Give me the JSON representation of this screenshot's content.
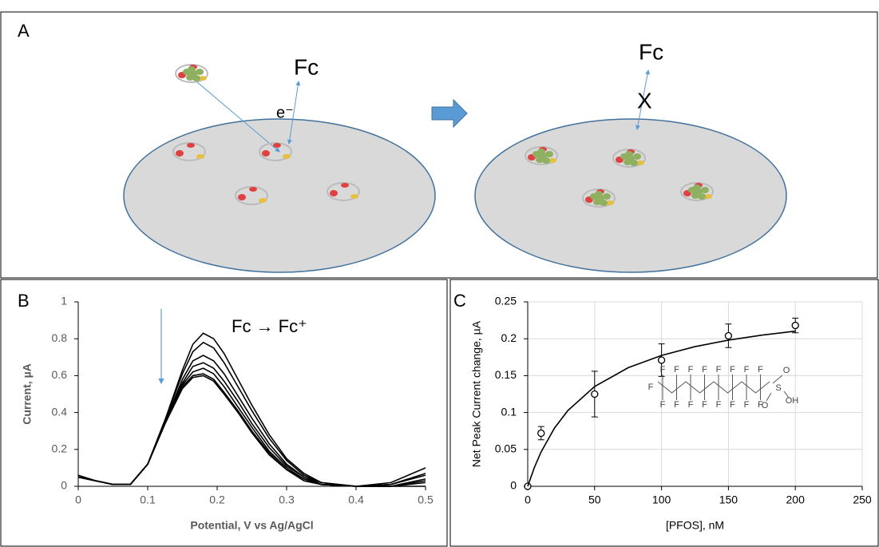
{
  "panel_a": {
    "label": "A",
    "left_fc": "Fc",
    "electron": "e⁻",
    "right_fc": "Fc",
    "blocked": "X"
  },
  "chart_data": [
    {
      "type": "line",
      "label": "B",
      "title": "Fc → Fc⁺",
      "x_label": "Potential, V vs Ag/AgCl",
      "y_label": "Current, µA",
      "xlim": [
        0,
        0.5
      ],
      "xticks": [
        0,
        0.1,
        0.2,
        0.3,
        0.4,
        0.5
      ],
      "ylim": [
        0,
        1
      ],
      "yticks": [
        0,
        0.2,
        0.4,
        0.6,
        0.8,
        1
      ],
      "grid": false,
      "x": [
        0,
        0.025,
        0.05,
        0.075,
        0.1,
        0.125,
        0.15,
        0.165,
        0.18,
        0.195,
        0.21,
        0.23,
        0.25,
        0.275,
        0.3,
        0.325,
        0.35,
        0.4,
        0.45,
        0.5
      ],
      "series": [
        {
          "color": "#000000",
          "values": [
            0.05,
            0.03,
            0.01,
            0.01,
            0.12,
            0.36,
            0.63,
            0.77,
            0.83,
            0.8,
            0.72,
            0.58,
            0.44,
            0.28,
            0.15,
            0.07,
            0.02,
            0.0,
            0.02,
            0.1
          ]
        },
        {
          "color": "#000000",
          "values": [
            0.05,
            0.03,
            0.01,
            0.01,
            0.12,
            0.36,
            0.61,
            0.73,
            0.78,
            0.75,
            0.67,
            0.54,
            0.41,
            0.26,
            0.14,
            0.06,
            0.02,
            0.0,
            0.01,
            0.07
          ]
        },
        {
          "color": "#000000",
          "values": [
            0.05,
            0.03,
            0.01,
            0.01,
            0.12,
            0.35,
            0.58,
            0.68,
            0.71,
            0.68,
            0.61,
            0.49,
            0.37,
            0.23,
            0.12,
            0.05,
            0.02,
            0.0,
            0.01,
            0.06
          ]
        },
        {
          "color": "#000000",
          "values": [
            0.05,
            0.03,
            0.01,
            0.01,
            0.12,
            0.35,
            0.56,
            0.65,
            0.67,
            0.64,
            0.57,
            0.46,
            0.34,
            0.21,
            0.11,
            0.05,
            0.01,
            0.0,
            0.0,
            0.04
          ]
        },
        {
          "color": "#000000",
          "values": [
            0.05,
            0.03,
            0.01,
            0.01,
            0.12,
            0.34,
            0.55,
            0.62,
            0.64,
            0.61,
            0.54,
            0.43,
            0.32,
            0.19,
            0.1,
            0.04,
            0.01,
            0.0,
            0.0,
            0.03
          ]
        },
        {
          "color": "#000000",
          "values": [
            0.05,
            0.03,
            0.01,
            0.01,
            0.12,
            0.34,
            0.54,
            0.6,
            0.61,
            0.58,
            0.51,
            0.41,
            0.3,
            0.18,
            0.09,
            0.04,
            0.01,
            0.0,
            0.0,
            0.02
          ]
        },
        {
          "color": "#000000",
          "values": [
            0.06,
            0.03,
            0.01,
            0.01,
            0.12,
            0.34,
            0.53,
            0.59,
            0.6,
            0.57,
            0.5,
            0.4,
            0.29,
            0.17,
            0.09,
            0.03,
            0.01,
            0.0,
            0.0,
            0.0
          ]
        }
      ]
    },
    {
      "type": "scatter",
      "label": "C",
      "x_label": "[PFOS], nM",
      "y_label": "Net Peak Current change, µA",
      "xlim": [
        0,
        250
      ],
      "xticks": [
        0,
        50,
        100,
        150,
        200,
        250
      ],
      "ylim": [
        0,
        0.25
      ],
      "yticks": [
        0,
        0.05,
        0.1,
        0.15,
        0.2,
        0.25
      ],
      "grid": true,
      "series": [
        {
          "type": "scatter",
          "color": "#000000",
          "x": [
            0,
            10,
            50,
            100,
            150,
            200
          ],
          "values": [
            0,
            0.072,
            0.125,
            0.171,
            0.204,
            0.218
          ],
          "errors": [
            0,
            0.009,
            0.031,
            0.022,
            0.016,
            0.01
          ]
        },
        {
          "type": "line",
          "color": "#000000",
          "x": [
            0,
            5,
            10,
            20,
            30,
            50,
            75,
            100,
            125,
            150,
            175,
            200
          ],
          "values": [
            0,
            0.0256,
            0.0466,
            0.0789,
            0.1027,
            0.1352,
            0.1607,
            0.1774,
            0.1893,
            0.1981,
            0.2049,
            0.2103
          ]
        }
      ],
      "inset_labels": [
        "F",
        "F",
        "F",
        "F",
        "F",
        "F",
        "F",
        "F",
        "F",
        "F",
        "F",
        "F",
        "F",
        "F",
        "F",
        "F",
        "F",
        "S",
        "O",
        "O",
        "OH"
      ]
    }
  ]
}
